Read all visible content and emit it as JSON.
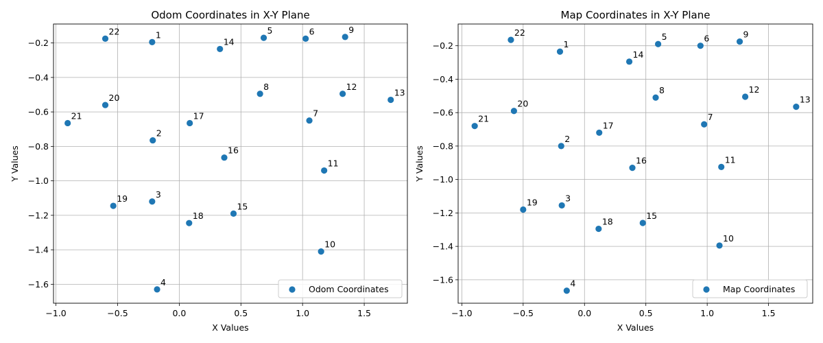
{
  "figure": {
    "background": "#ffffff",
    "point_color": "#1f77b4",
    "grid_color": "#b0b0b0"
  },
  "chart_data": [
    {
      "type": "scatter",
      "title": "Odom Coordinates in X-Y Plane",
      "xlabel": "X Values",
      "ylabel": "Y Values",
      "xlim": [
        -1.02,
        1.85
      ],
      "ylim": [
        -1.71,
        -0.09
      ],
      "xticks": [
        -1.0,
        -0.5,
        0.0,
        0.5,
        1.0,
        1.5
      ],
      "xtick_labels": [
        "−1.0",
        "−0.5",
        "0.0",
        "0.5",
        "1.0",
        "1.5"
      ],
      "yticks": [
        -1.6,
        -1.4,
        -1.2,
        -1.0,
        -0.8,
        -0.6,
        -0.4,
        -0.2
      ],
      "ytick_labels": [
        "−1.6",
        "−1.4",
        "−1.2",
        "−1.0",
        "−0.8",
        "−0.6",
        "−0.4",
        "−0.2"
      ],
      "grid": true,
      "legend": {
        "label": "Odom Coordinates",
        "placement": "lower-right"
      },
      "points": [
        {
          "label": "1",
          "x": -0.22,
          "y": -0.195
        },
        {
          "label": "2",
          "x": -0.215,
          "y": -0.765
        },
        {
          "label": "3",
          "x": -0.22,
          "y": -1.12
        },
        {
          "label": "4",
          "x": -0.18,
          "y": -1.63
        },
        {
          "label": "5",
          "x": 0.685,
          "y": -0.17
        },
        {
          "label": "6",
          "x": 1.025,
          "y": -0.175
        },
        {
          "label": "7",
          "x": 1.055,
          "y": -0.65
        },
        {
          "label": "8",
          "x": 0.655,
          "y": -0.495
        },
        {
          "label": "9",
          "x": 1.345,
          "y": -0.165
        },
        {
          "label": "10",
          "x": 1.15,
          "y": -1.41
        },
        {
          "label": "11",
          "x": 1.175,
          "y": -0.94
        },
        {
          "label": "12",
          "x": 1.325,
          "y": -0.495
        },
        {
          "label": "13",
          "x": 1.715,
          "y": -0.53
        },
        {
          "label": "14",
          "x": 0.33,
          "y": -0.235
        },
        {
          "label": "15",
          "x": 0.44,
          "y": -1.19
        },
        {
          "label": "16",
          "x": 0.365,
          "y": -0.865
        },
        {
          "label": "17",
          "x": 0.085,
          "y": -0.665
        },
        {
          "label": "18",
          "x": 0.08,
          "y": -1.245
        },
        {
          "label": "19",
          "x": -0.535,
          "y": -1.145
        },
        {
          "label": "20",
          "x": -0.6,
          "y": -0.56
        },
        {
          "label": "21",
          "x": -0.905,
          "y": -0.665
        },
        {
          "label": "22",
          "x": -0.6,
          "y": -0.175
        }
      ]
    },
    {
      "type": "scatter",
      "title": "Map Coordinates in X-Y Plane",
      "xlabel": "X Values",
      "ylabel": "Y Values",
      "xlim": [
        -1.03,
        1.86
      ],
      "ylim": [
        -1.74,
        -0.07
      ],
      "xticks": [
        -1.0,
        -0.5,
        0.0,
        0.5,
        1.0,
        1.5
      ],
      "xtick_labels": [
        "−1.0",
        "−0.5",
        "0.0",
        "0.5",
        "1.0",
        "1.5"
      ],
      "yticks": [
        -1.6,
        -1.4,
        -1.2,
        -1.0,
        -0.8,
        -0.6,
        -0.4,
        -0.2
      ],
      "ytick_labels": [
        "−1.6",
        "−1.4",
        "−1.2",
        "−1.0",
        "−0.8",
        "−0.6",
        "−0.4",
        "−0.2"
      ],
      "grid": true,
      "legend": {
        "label": "Map Coordinates",
        "placement": "lower-right"
      },
      "points": [
        {
          "label": "1",
          "x": -0.2,
          "y": -0.235
        },
        {
          "label": "2",
          "x": -0.19,
          "y": -0.8
        },
        {
          "label": "3",
          "x": -0.185,
          "y": -1.155
        },
        {
          "label": "4",
          "x": -0.145,
          "y": -1.665
        },
        {
          "label": "5",
          "x": 0.6,
          "y": -0.19
        },
        {
          "label": "6",
          "x": 0.945,
          "y": -0.2
        },
        {
          "label": "7",
          "x": 0.975,
          "y": -0.67
        },
        {
          "label": "8",
          "x": 0.58,
          "y": -0.51
        },
        {
          "label": "9",
          "x": 1.265,
          "y": -0.175
        },
        {
          "label": "10",
          "x": 1.1,
          "y": -1.395
        },
        {
          "label": "11",
          "x": 1.115,
          "y": -0.925
        },
        {
          "label": "12",
          "x": 1.31,
          "y": -0.505
        },
        {
          "label": "13",
          "x": 1.725,
          "y": -0.565
        },
        {
          "label": "14",
          "x": 0.365,
          "y": -0.295
        },
        {
          "label": "15",
          "x": 0.475,
          "y": -1.26
        },
        {
          "label": "16",
          "x": 0.39,
          "y": -0.93
        },
        {
          "label": "17",
          "x": 0.12,
          "y": -0.72
        },
        {
          "label": "18",
          "x": 0.115,
          "y": -1.295
        },
        {
          "label": "19",
          "x": -0.5,
          "y": -1.18
        },
        {
          "label": "20",
          "x": -0.575,
          "y": -0.59
        },
        {
          "label": "21",
          "x": -0.895,
          "y": -0.68
        },
        {
          "label": "22",
          "x": -0.6,
          "y": -0.165
        }
      ]
    }
  ]
}
